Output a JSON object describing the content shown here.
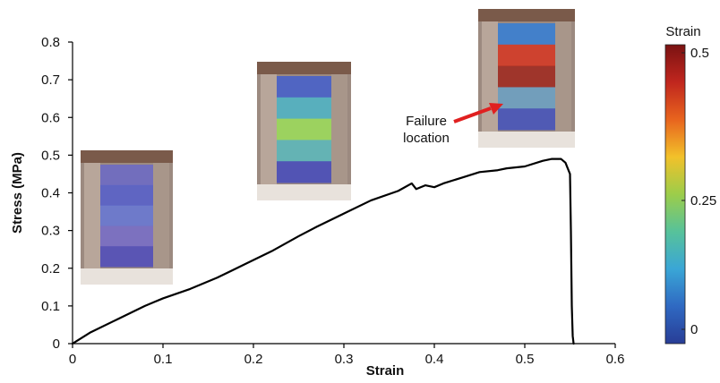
{
  "chart_data": {
    "type": "line",
    "title": "",
    "xlabel": "Strain",
    "ylabel": "Stress (MPa)",
    "xlim": [
      0,
      0.6
    ],
    "ylim": [
      0,
      0.8
    ],
    "x_ticks": [
      "0",
      "0.1",
      "0.2",
      "0.3",
      "0.4",
      "0.5",
      "0.6"
    ],
    "y_ticks": [
      "0",
      "0.1",
      "0.2",
      "0.3",
      "0.4",
      "0.5",
      "0.6",
      "0.7",
      "0.8"
    ],
    "grid": false,
    "series": [
      {
        "color": "#000000",
        "x": [
          0,
          0.02,
          0.05,
          0.08,
          0.09,
          0.1,
          0.13,
          0.16,
          0.19,
          0.22,
          0.25,
          0.27,
          0.3,
          0.33,
          0.36,
          0.375,
          0.38,
          0.39,
          0.4,
          0.41,
          0.43,
          0.45,
          0.47,
          0.48,
          0.5,
          0.52,
          0.53,
          0.54,
          0.545,
          0.55,
          0.551,
          0.552,
          0.553,
          0.554
        ],
        "y": [
          0,
          0.03,
          0.065,
          0.1,
          0.11,
          0.12,
          0.145,
          0.175,
          0.21,
          0.245,
          0.285,
          0.31,
          0.345,
          0.38,
          0.405,
          0.425,
          0.41,
          0.42,
          0.415,
          0.425,
          0.44,
          0.455,
          0.46,
          0.465,
          0.47,
          0.485,
          0.49,
          0.49,
          0.48,
          0.45,
          0.3,
          0.1,
          0.02,
          0
        ]
      }
    ],
    "annotations": [
      {
        "text_lines": [
          "Failure",
          "location"
        ],
        "arrow_color": "#e02020"
      }
    ],
    "colorbar": {
      "title": "Strain",
      "ticks": [
        "0.5",
        "0.25",
        "0"
      ],
      "colors": [
        "#7a1212",
        "#c0261e",
        "#e8641e",
        "#f2c12a",
        "#9ccd4a",
        "#57c29a",
        "#3aa6d6",
        "#2f69c2",
        "#283d96"
      ]
    },
    "inset_images": [
      {
        "tint": [
          "#6f6bc2",
          "#5a62c8",
          "#6a78d0",
          "#7a6fc4",
          "#5550b8"
        ]
      },
      {
        "tint": [
          "#4a62c8",
          "#52b2c2",
          "#9cd85c",
          "#5fb6b8",
          "#4c4fb8"
        ]
      },
      {
        "tint": [
          "#3c7fd0",
          "#d23c28",
          "#a02e24",
          "#6fa0c0",
          "#4a56b8"
        ]
      }
    ]
  }
}
